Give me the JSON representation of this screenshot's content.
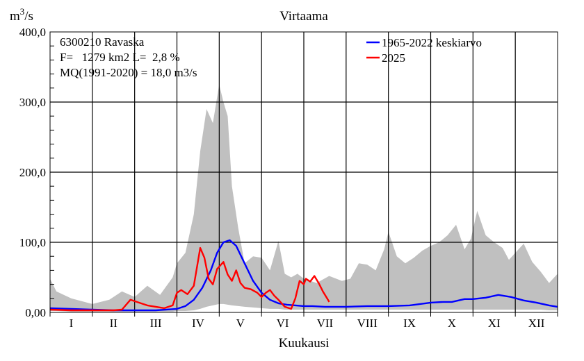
{
  "chart_data": {
    "type": "line",
    "title": "Virtaama",
    "ylabel_base": "m",
    "ylabel_sup": "3",
    "ylabel_rest": "/s",
    "xlabel": "Kuukausi",
    "ylim": [
      0,
      400
    ],
    "xlim": [
      0,
      12
    ],
    "grid": true,
    "legend_position": "top-right",
    "y_ticks": [
      {
        "value": 0,
        "label": "0,00"
      },
      {
        "value": 100,
        "label": "100,0"
      },
      {
        "value": 200,
        "label": "200,0"
      },
      {
        "value": 300,
        "label": "300,0"
      },
      {
        "value": 400,
        "label": "400,0"
      }
    ],
    "months": [
      "I",
      "II",
      "III",
      "IV",
      "V",
      "VI",
      "VII",
      "VIII",
      "IX",
      "X",
      "XI",
      "XII"
    ],
    "station_info": [
      "6300210 Ravaska",
      "F=   1279 km2 L=  2,8 %",
      "MQ(1991-2020) = 18,0 m3/s"
    ],
    "colors": {
      "range": "#c0c0c0",
      "mean": "#0000ff",
      "current": "#ff0000",
      "grid": "#000000"
    },
    "range_band": {
      "name": "",
      "x": [
        0,
        0.15,
        0.5,
        1.0,
        1.4,
        1.7,
        2.0,
        2.3,
        2.6,
        2.9,
        3.0,
        3.2,
        3.4,
        3.55,
        3.7,
        3.85,
        4.0,
        4.1,
        4.2,
        4.3,
        4.45,
        4.6,
        4.8,
        5.0,
        5.2,
        5.4,
        5.55,
        5.7,
        5.85,
        6.0,
        6.3,
        6.6,
        6.9,
        7.1,
        7.3,
        7.5,
        7.7,
        7.9,
        8.0,
        8.2,
        8.4,
        8.6,
        8.8,
        9.0,
        9.2,
        9.4,
        9.6,
        9.8,
        9.95,
        10.1,
        10.3,
        10.5,
        10.7,
        10.85,
        11.0,
        11.2,
        11.4,
        11.6,
        11.8,
        12.0
      ],
      "max": [
        48,
        30,
        20,
        12,
        18,
        30,
        22,
        38,
        25,
        50,
        70,
        85,
        140,
        230,
        290,
        270,
        325,
        300,
        280,
        180,
        120,
        70,
        80,
        78,
        60,
        102,
        55,
        50,
        55,
        48,
        42,
        52,
        45,
        48,
        70,
        68,
        60,
        90,
        115,
        80,
        70,
        78,
        88,
        95,
        100,
        110,
        125,
        90,
        105,
        145,
        110,
        100,
        92,
        75,
        85,
        98,
        72,
        58,
        42,
        55
      ],
      "min": [
        2,
        2,
        1,
        1,
        1,
        1,
        1,
        1,
        1,
        1,
        2,
        2,
        3,
        5,
        8,
        10,
        12,
        12,
        11,
        10,
        9,
        8,
        7,
        6,
        5,
        5,
        4,
        4,
        4,
        4,
        4,
        4,
        4,
        4,
        4,
        4,
        4,
        4,
        4,
        4,
        4,
        4,
        4,
        4,
        4,
        4,
        4,
        4,
        4,
        4,
        4,
        4,
        4,
        4,
        4,
        4,
        4,
        4,
        3,
        3
      ]
    },
    "series": [
      {
        "name": "1965-2022 keskiarvo",
        "x": [
          0,
          0.5,
          1.0,
          1.5,
          2.0,
          2.5,
          3.0,
          3.2,
          3.4,
          3.6,
          3.8,
          3.95,
          4.1,
          4.25,
          4.4,
          4.6,
          4.8,
          5.0,
          5.2,
          5.4,
          5.6,
          5.8,
          6.0,
          6.2,
          6.5,
          7.0,
          7.5,
          8.0,
          8.5,
          9.0,
          9.3,
          9.5,
          9.8,
          10.0,
          10.3,
          10.6,
          10.9,
          11.2,
          11.5,
          11.8,
          12.0
        ],
        "y": [
          6,
          5,
          4,
          3,
          3,
          3,
          5,
          9,
          18,
          35,
          60,
          85,
          100,
          103,
          95,
          70,
          45,
          28,
          18,
          13,
          11,
          10,
          9,
          9,
          8,
          8,
          9,
          9,
          10,
          14,
          15,
          15,
          19,
          19,
          21,
          25,
          22,
          17,
          14,
          10,
          8
        ]
      },
      {
        "name": "2025",
        "x": [
          0,
          0.5,
          1.0,
          1.5,
          1.7,
          1.9,
          2.1,
          2.3,
          2.5,
          2.7,
          2.9,
          3.0,
          3.1,
          3.25,
          3.4,
          3.55,
          3.65,
          3.75,
          3.85,
          3.95,
          4.1,
          4.2,
          4.3,
          4.4,
          4.5,
          4.6,
          4.75,
          4.9,
          5.0,
          5.1,
          5.2,
          5.3,
          5.4,
          5.55,
          5.7,
          5.8,
          5.9,
          6.0,
          6.05,
          6.15,
          6.25,
          6.35,
          6.45,
          6.55,
          6.6
        ],
        "y": [
          4,
          3,
          3,
          3,
          4,
          18,
          14,
          10,
          8,
          6,
          10,
          28,
          32,
          26,
          38,
          92,
          78,
          48,
          40,
          62,
          72,
          54,
          45,
          60,
          42,
          35,
          33,
          28,
          22,
          28,
          32,
          24,
          18,
          8,
          5,
          20,
          45,
          40,
          48,
          44,
          52,
          42,
          30,
          20,
          15
        ]
      }
    ]
  }
}
